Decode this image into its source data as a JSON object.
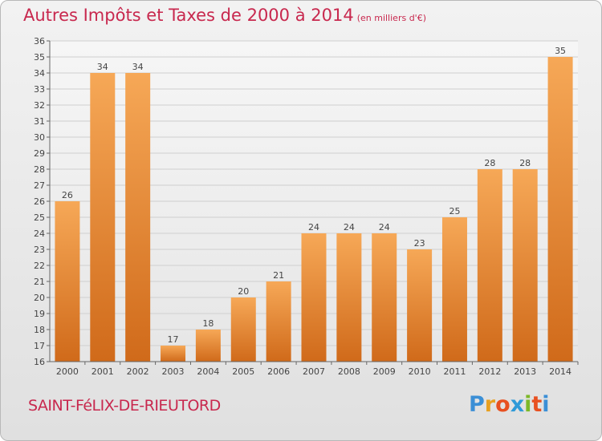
{
  "header": {
    "title": "Autres Impôts et Taxes de 2000 à 2014",
    "subtitle": "(en milliers d'€)"
  },
  "footer": {
    "commune": "SAINT-FéLIX-DE-RIEUTORD",
    "logo": {
      "letters": [
        "P",
        "r",
        "o",
        "x",
        "i",
        "t",
        "i"
      ],
      "colors": [
        "#3b8fd6",
        "#e8a020",
        "#e85020",
        "#2e9ad8",
        "#7cb828",
        "#e85020",
        "#3b8fd6"
      ]
    }
  },
  "colors": {
    "bar_light": "#f6a857",
    "bar_dark": "#d06a1a",
    "title": "#c8284e",
    "grid": "#cfcfcf"
  },
  "chart_data": {
    "type": "bar",
    "title": "Autres Impôts et Taxes de 2000 à 2014",
    "subtitle": "(en milliers d'€)",
    "xlabel": "",
    "ylabel": "",
    "categories": [
      "2000",
      "2001",
      "2002",
      "2003",
      "2004",
      "2005",
      "2006",
      "2007",
      "2008",
      "2009",
      "2010",
      "2011",
      "2012",
      "2013",
      "2014"
    ],
    "values": [
      26,
      34,
      34,
      17,
      18,
      20,
      21,
      24,
      24,
      24,
      23,
      25,
      28,
      28,
      35
    ],
    "ylim": [
      16,
      36
    ],
    "yticks": [
      16,
      17,
      18,
      19,
      20,
      21,
      22,
      23,
      24,
      25,
      26,
      27,
      28,
      29,
      30,
      31,
      32,
      33,
      34,
      35,
      36
    ],
    "grid": true,
    "data_labels": true,
    "legend": "none"
  }
}
